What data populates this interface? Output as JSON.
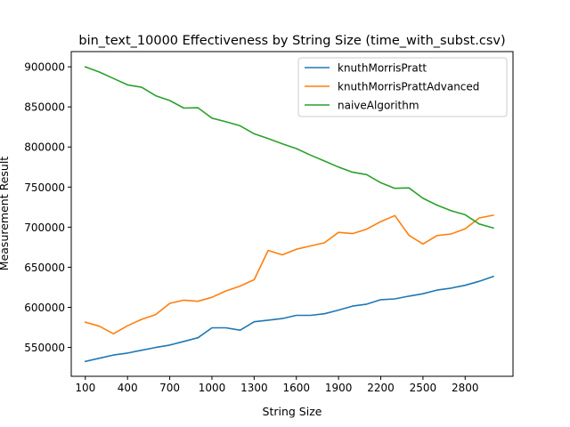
{
  "chart_data": {
    "type": "line",
    "title": "bin_text_10000 Effectiveness by String Size (time_with_subst.csv)",
    "xlabel": "String Size",
    "ylabel": "Measurement Result",
    "xlim": [
      0,
      3140
    ],
    "ylim": [
      514000,
      919000
    ],
    "xticks": [
      100,
      400,
      700,
      1000,
      1300,
      1600,
      1900,
      2200,
      2500,
      2800
    ],
    "yticks": [
      550000,
      600000,
      650000,
      700000,
      750000,
      800000,
      850000,
      900000
    ],
    "grid": false,
    "legend_position": "top-right",
    "x": [
      100,
      200,
      300,
      400,
      500,
      600,
      700,
      800,
      900,
      1000,
      1100,
      1200,
      1300,
      1400,
      1500,
      1600,
      1700,
      1800,
      1900,
      2000,
      2100,
      2200,
      2300,
      2400,
      2500,
      2600,
      2700,
      2800,
      2900,
      3000
    ],
    "series": [
      {
        "name": "knuthMorrisPratt",
        "color": "#1f77b4",
        "values": [
          532500,
          536500,
          540500,
          543000,
          546500,
          550000,
          553000,
          557500,
          562000,
          574500,
          574500,
          571500,
          582000,
          584000,
          586000,
          590000,
          590000,
          592000,
          596500,
          601500,
          604000,
          609500,
          610500,
          614000,
          617000,
          621500,
          624000,
          627500,
          632500,
          638500
        ]
      },
      {
        "name": "knuthMorrisPrattAdvanced",
        "color": "#ff7f0e",
        "values": [
          581500,
          576500,
          567000,
          577000,
          585000,
          591000,
          605000,
          609000,
          607500,
          612500,
          620500,
          626500,
          634500,
          671000,
          665500,
          672500,
          676500,
          680500,
          693500,
          692000,
          697500,
          707000,
          714500,
          690000,
          679000,
          689500,
          691500,
          698000,
          711500,
          715000
        ]
      },
      {
        "name": "naiveAlgorithm",
        "color": "#2ca02c",
        "values": [
          900000,
          893500,
          885500,
          877500,
          874500,
          864000,
          858000,
          848500,
          849000,
          836000,
          831500,
          826500,
          816500,
          810500,
          804000,
          798000,
          790000,
          782500,
          775000,
          768500,
          765500,
          755500,
          748500,
          749000,
          736000,
          727500,
          720500,
          715500,
          704000,
          699000
        ]
      }
    ]
  }
}
